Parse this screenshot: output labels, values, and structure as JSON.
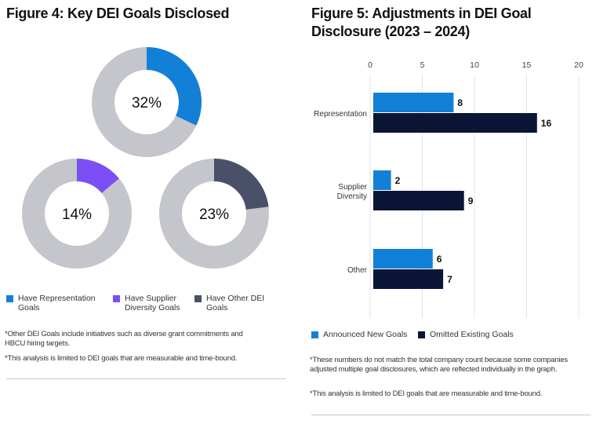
{
  "colors": {
    "blue": "#1380d8",
    "purple": "#7b4ff5",
    "slate": "#4a5068",
    "gray": "#c4c6cc",
    "navy": "#0b1535",
    "grid": "#e4e4e8"
  },
  "chart_data": [
    {
      "type": "pie",
      "title": "Figure 4: Key DEI Goals Disclosed",
      "series": [
        {
          "name": "Have Representation Goals",
          "value": 32,
          "label": "32%",
          "color": "#1380d8"
        },
        {
          "name": "Have Supplier Diversity Goals",
          "value": 14,
          "label": "14%",
          "color": "#7b4ff5"
        },
        {
          "name": "Have Other DEI Goals",
          "value": 23,
          "label": "23%",
          "color": "#4a5068"
        }
      ],
      "legend": [
        "Have Representation Goals",
        "Have Supplier Diversity Goals",
        "Have Other DEI Goals"
      ],
      "notes": [
        "*Other DEI Goals include initiatives such as diverse grant commitments and HBCU hiring targets.",
        "*This analysis is limited to DEI goals that are measurable and time-bound."
      ]
    },
    {
      "type": "bar",
      "orientation": "horizontal",
      "title": "Figure 5: Adjustments in DEI Goal Disclosure (2023 – 2024)",
      "categories": [
        "Representation",
        "Supplier Diversity",
        "Other"
      ],
      "series": [
        {
          "name": "Announced New Goals",
          "values": [
            8,
            2,
            6
          ],
          "color": "#1380d8"
        },
        {
          "name": "Omitted Existing Goals",
          "values": [
            16,
            9,
            7
          ],
          "color": "#0b1535"
        }
      ],
      "xlim": [
        0,
        20
      ],
      "xticks": [
        "0",
        "5",
        "10",
        "15",
        "20"
      ],
      "grid": true,
      "legend_position": "bottom-left",
      "notes": [
        "*These numbers do not match the total company count because some companies adjusted multiple goal disclosures, which are reflected individually in the graph.",
        "*This analysis is limited to DEI goals that are measurable and time-bound."
      ]
    }
  ]
}
